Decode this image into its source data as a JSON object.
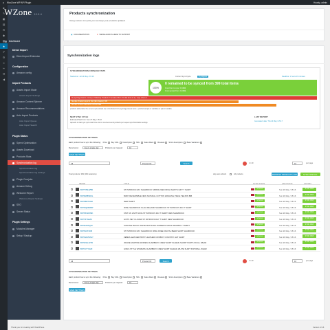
{
  "adminbar": {
    "site": "WooZone WP API Plugin",
    "greeting": "Howdy, admin"
  },
  "sidebar": {
    "logo": "WZone",
    "version": "10.0.4",
    "dashboard": "Dashboard",
    "sections": [
      {
        "title": "Direct Import",
        "items": [
          "Direct Import Extension"
        ]
      },
      {
        "title": "Configuration",
        "items": [
          "Amazon config"
        ]
      },
      {
        "title": "Import Products",
        "items": [
          "Assets Import Mode",
          "Amazon Content Spinner",
          "Amazon Recommendations",
          "Auto Import Products"
        ]
      },
      {
        "title": "Plugin Status",
        "items": [
          "Speed Optimization",
          "Assets Download",
          "Products Stats",
          "Synchronization log",
          "Plugin Cronjobs",
          "Amazon Debug",
          "Welcome Report",
          "SEO",
          "Server Status"
        ]
      },
      {
        "title": "Plugin Settings",
        "items": [
          "Modules Manager",
          "Setup / Backup"
        ]
      }
    ],
    "subs": {
      "import_settings": "Assets Import Settings",
      "auto_import": [
        "Auto Import Queue",
        "Auto Import Search"
      ],
      "sync_subs": [
        "Synchronization log",
        "Synchronization log settings"
      ],
      "welcome_sub": "Welcome Report Settings"
    }
  },
  "header": {
    "title": "Products synchronization",
    "subtitle": "Using custom cron jobs you can keep your products updated.",
    "tab_documentation": "DOCUMENTATION",
    "tab_support": "WE'RE ALWAYS HERE TO SUPPORT"
  },
  "sync": {
    "logs_title": "Synchronization logs",
    "cron_title": "SYNCHRONIZATION CRONJOB STATS",
    "started": "Started on: Jul 24 May / 15:16",
    "current_cycle": "Current Sync Cycle",
    "cycle_badge": "In progress",
    "deadline": "Deadline: 1 hours 15 minutes",
    "pct": "100%",
    "big_text": "0 remained to be synced from 399 total items",
    "line1": "0 out from to sync: 0 (399)",
    "line2": "0 out synced from: 0 (399)",
    "red_bar": "Re-syncing amazon errors (ex: NoItems): Products: 0 remained from 21 total items to try : step 1 from 3",
    "orange1": "Number of items to sync in from (Ex: Amazon): 315",
    "orange2": "Number of items marked as not found 399",
    "note": "products added after the current cycle started are not included in the syncing process   items + product sample or variables or parent variable",
    "next_title": "NEXT SYNC CYCLE",
    "next_text": "Estimated Start from: Sun 27 May / 15:16",
    "next_sub": "depends on last sync cycle start time and on recurrence and products per request synchronization settings",
    "last_title": "LAST REPORT",
    "last_text": "Generated: date: Thu 24 May / 15:17"
  },
  "settings": {
    "title": "SYNCHRONISATION SETTINGS",
    "sync_label": "Each product has to sync the following:",
    "fields": [
      "Price",
      "Buy URL",
      "Description",
      "SKU",
      "Sales Rank",
      "Reviews",
      "Short description",
      "Base Variations"
    ],
    "recurrence_label": "Recurrence:",
    "recurrence_value": "Every single day",
    "per_request_label": "Products per request:",
    "per_request_value": "10",
    "save_btn": "SAVE SETTINGS"
  },
  "table": {
    "filter_all": "All",
    "filter_id": "Product ID",
    "search_btn": "Search",
    "total": "Total products: 399 (399 variations)",
    "per_page": "per page",
    "pages": "1 / 40",
    "skip_label": "skip auto refresh",
    "all_sel": "All products",
    "sync_now_btn": "SYNC NOW ALL",
    "refresh_btn": "REFRESH PRODUCTS LIST",
    "cols": [
      "IMAGE",
      "TITLE",
      "SYNC STATS",
      "LAST SYNC",
      "ACTION"
    ],
    "status_label": "SYNCED",
    "action_label": "SYNC NOW",
    "rows": [
      {
        "id": "B07TYBLW5B",
        "title": "ST PATRICKS DAY SHAMROCK SPRING MEN IRISH SAINTS GIFT T SHIRT",
        "date": "Sun 20 May / 15:16"
      },
      {
        "id": "B07RW8SDKL",
        "title": "BABY REVERSIBLE NEW NATURAL COTTON WASHING PIECE TEE BIN BIB",
        "date": "Sun 20 May / 15:16"
      },
      {
        "id": "B07NBZT4GD",
        "title": "JEEP SHIRT",
        "date": "Sun 20 May / 15:16"
      },
      {
        "id": "B07NQ9KRRP",
        "title": "IRISH SHAMROCK FLAG IRELAND SHAMROCK ST PATRICKS DAY T SHIRT",
        "date": "Sun 20 May / 15:16"
      },
      {
        "id": "B07PKSFXMK",
        "title": "KNIT UN LIMIT NOVA ST PATRICKS DAY T-SHIRT NEW SHAMROCK",
        "date": "Sun 20 May / 15:16"
      },
      {
        "id": "B07TZ79AZC",
        "title": "GIFTS SET CLOVER ST PATRICKS DAY T SHIRT NEW SHAMROCK",
        "date": "Sun 20 May / 15:16"
      },
      {
        "id": "B07ZHDXQTF",
        "title": "SURVIVE BLACK WHITE MATCHING WOMENS GIRLS DRAWING T SHIRT",
        "date": "Sun 20 May / 15:16"
      },
      {
        "id": "B07PL9T4KB",
        "title": "ST PATRICKS DAY SHAMROCK IRISH FREE DIGITAL BEER SHIRT SHAMROCK",
        "date": "Sun 20 May / 15:16"
      },
      {
        "id": "B07SHSTMGY",
        "title": "ZEBRA LEATHER PRINT LEATHER COWBOY COUNTRY HAT SHIRT",
        "date": "Sun 20 May / 15:16"
      },
      {
        "id": "B07W1G13TD",
        "title": "JIRAFE MARTINE WOMEN CHAMBRAY CREW SHIRT SLEEVE SHORT PANTS SKULL WEAR",
        "date": "Sun 20 May / 15:16"
      },
      {
        "id": "B07VVYYAZ3",
        "title": "GIRLS STYLE WOMENS CHAMBRAY CREW SHIRT SLEEVE WHITE SHIRT KNITWALL WEAR",
        "date": "Sun 20 May / 15:16"
      }
    ]
  },
  "footer": {
    "left": "Thank you for creating with WordPress.",
    "right": "Version 4.9.6"
  },
  "colors": {
    "green": "#7ad03a",
    "blue": "#2ea2cc",
    "red": "#dd3d36",
    "orange": "#f08a24",
    "sidebar": "#2e3a4a"
  }
}
